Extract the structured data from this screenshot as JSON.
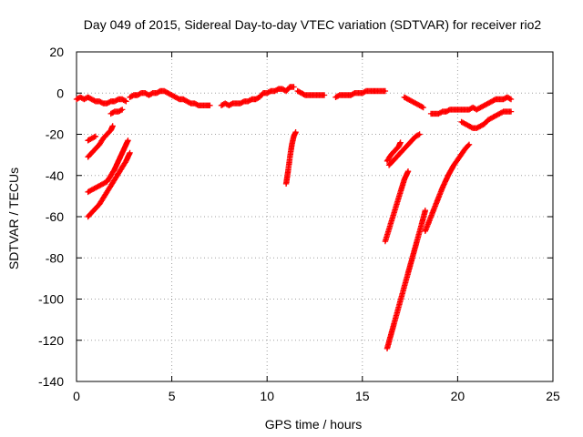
{
  "chart_data": {
    "type": "scatter",
    "title": "Day 049 of 2015, Sidereal Day-to-day VTEC variation (SDTVAR) for receiver rio2",
    "xlabel": "GPS time / hours",
    "ylabel": "SDTVAR / TECUs",
    "xlim": [
      0,
      25
    ],
    "ylim": [
      -140,
      20
    ],
    "xticks": [
      0,
      5,
      10,
      15,
      20,
      25
    ],
    "yticks": [
      -140,
      -120,
      -100,
      -80,
      -60,
      -40,
      -20,
      0,
      20
    ],
    "grid": true,
    "marker": "plus",
    "color": "#ff0000",
    "series": [
      {
        "points": [
          [
            0.0,
            -3
          ],
          [
            0.2,
            -2
          ],
          [
            0.4,
            -3
          ],
          [
            0.6,
            -2
          ],
          [
            0.8,
            -3
          ],
          [
            1.0,
            -4
          ],
          [
            1.2,
            -4
          ],
          [
            1.4,
            -5
          ],
          [
            1.6,
            -5
          ],
          [
            1.8,
            -4
          ],
          [
            2.0,
            -4
          ],
          [
            2.2,
            -3
          ],
          [
            2.4,
            -3
          ],
          [
            2.6,
            -4
          ]
        ]
      },
      {
        "points": [
          [
            2.8,
            -2
          ],
          [
            3.0,
            -1
          ],
          [
            3.2,
            -1
          ],
          [
            3.4,
            0
          ],
          [
            3.6,
            0
          ],
          [
            3.8,
            -1
          ],
          [
            4.0,
            0
          ],
          [
            4.2,
            0
          ],
          [
            4.4,
            1
          ],
          [
            4.6,
            1
          ],
          [
            4.8,
            0
          ],
          [
            5.0,
            -1
          ],
          [
            5.2,
            -2
          ],
          [
            5.4,
            -3
          ],
          [
            5.6,
            -3
          ],
          [
            5.8,
            -4
          ],
          [
            6.0,
            -5
          ],
          [
            6.2,
            -5
          ],
          [
            6.4,
            -6
          ],
          [
            6.6,
            -6
          ],
          [
            6.8,
            -6
          ],
          [
            7.0,
            -6
          ]
        ]
      },
      {
        "points": [
          [
            7.6,
            -6
          ],
          [
            7.8,
            -5
          ],
          [
            8.0,
            -6
          ],
          [
            8.2,
            -5
          ],
          [
            8.4,
            -5
          ],
          [
            8.6,
            -5
          ],
          [
            8.8,
            -4
          ],
          [
            9.0,
            -4
          ],
          [
            9.2,
            -3
          ],
          [
            9.4,
            -3
          ],
          [
            9.6,
            -2
          ],
          [
            9.8,
            0
          ],
          [
            10.0,
            0
          ],
          [
            10.2,
            1
          ],
          [
            10.4,
            1
          ],
          [
            10.6,
            2
          ],
          [
            10.8,
            2
          ],
          [
            11.0,
            1
          ],
          [
            11.2,
            3
          ],
          [
            11.4,
            3
          ]
        ]
      },
      {
        "points": [
          [
            11.6,
            1
          ],
          [
            11.8,
            0
          ],
          [
            12.0,
            -1
          ],
          [
            12.2,
            -1
          ],
          [
            12.4,
            -1
          ],
          [
            12.6,
            -1
          ],
          [
            12.8,
            -1
          ],
          [
            13.0,
            -1
          ]
        ]
      },
      {
        "points": [
          [
            13.6,
            -2
          ],
          [
            13.8,
            -1
          ],
          [
            14.0,
            -1
          ],
          [
            14.2,
            -1
          ],
          [
            14.4,
            -1
          ],
          [
            14.6,
            0
          ],
          [
            14.8,
            0
          ],
          [
            15.0,
            0
          ],
          [
            15.2,
            1
          ],
          [
            15.4,
            1
          ],
          [
            15.6,
            1
          ],
          [
            15.8,
            1
          ],
          [
            16.0,
            1
          ],
          [
            16.2,
            1
          ]
        ]
      },
      {
        "points": [
          [
            17.2,
            -2
          ],
          [
            17.4,
            -3
          ],
          [
            17.6,
            -4
          ],
          [
            17.8,
            -5
          ],
          [
            18.0,
            -6
          ],
          [
            18.2,
            -7
          ]
        ]
      },
      {
        "points": [
          [
            18.6,
            -10
          ],
          [
            18.8,
            -10
          ],
          [
            19.0,
            -10
          ],
          [
            19.2,
            -9
          ],
          [
            19.4,
            -9
          ],
          [
            19.6,
            -8
          ],
          [
            19.8,
            -8
          ],
          [
            20.0,
            -8
          ],
          [
            20.2,
            -8
          ],
          [
            20.4,
            -8
          ],
          [
            20.6,
            -8
          ],
          [
            20.8,
            -7
          ],
          [
            21.0,
            -8
          ],
          [
            21.2,
            -7
          ],
          [
            21.4,
            -6
          ],
          [
            21.6,
            -5
          ],
          [
            21.8,
            -4
          ],
          [
            22.0,
            -3
          ],
          [
            22.2,
            -3
          ],
          [
            22.4,
            -3
          ],
          [
            22.6,
            -2
          ],
          [
            22.8,
            -3
          ]
        ]
      },
      {
        "points": [
          [
            20.2,
            -14
          ],
          [
            20.4,
            -15
          ],
          [
            20.6,
            -16
          ],
          [
            20.8,
            -17
          ],
          [
            21.0,
            -17
          ],
          [
            21.2,
            -16
          ],
          [
            21.4,
            -15
          ],
          [
            21.6,
            -13
          ],
          [
            21.8,
            -12
          ],
          [
            22.0,
            -11
          ],
          [
            22.2,
            -10
          ],
          [
            22.4,
            -9
          ],
          [
            22.6,
            -9
          ],
          [
            22.8,
            -9
          ]
        ]
      },
      {
        "points": [
          [
            0.6,
            -23
          ],
          [
            0.8,
            -22
          ],
          [
            1.0,
            -21
          ]
        ]
      },
      {
        "points": [
          [
            0.6,
            -31
          ],
          [
            0.8,
            -29
          ],
          [
            1.0,
            -27
          ],
          [
            1.2,
            -25
          ],
          [
            1.4,
            -22
          ],
          [
            1.6,
            -20
          ],
          [
            1.8,
            -18
          ],
          [
            1.9,
            -16
          ]
        ]
      },
      {
        "points": [
          [
            0.6,
            -48
          ],
          [
            0.8,
            -47
          ],
          [
            1.0,
            -46
          ],
          [
            1.2,
            -45
          ],
          [
            1.4,
            -44
          ],
          [
            1.6,
            -43
          ],
          [
            1.8,
            -40
          ],
          [
            2.0,
            -37
          ],
          [
            2.2,
            -33
          ],
          [
            2.4,
            -29
          ],
          [
            2.6,
            -25
          ],
          [
            2.7,
            -23
          ]
        ]
      },
      {
        "points": [
          [
            0.6,
            -60
          ],
          [
            0.8,
            -58
          ],
          [
            1.0,
            -56
          ],
          [
            1.2,
            -54
          ],
          [
            1.4,
            -51
          ],
          [
            1.6,
            -48
          ],
          [
            1.8,
            -45
          ],
          [
            2.0,
            -42
          ],
          [
            2.2,
            -39
          ],
          [
            2.4,
            -36
          ],
          [
            2.6,
            -33
          ],
          [
            2.8,
            -29
          ]
        ]
      },
      {
        "points": [
          [
            1.8,
            -10
          ],
          [
            2.0,
            -9
          ],
          [
            2.2,
            -9
          ],
          [
            2.4,
            -8
          ]
        ]
      },
      {
        "points": [
          [
            11.0,
            -44
          ],
          [
            11.1,
            -38
          ],
          [
            11.2,
            -31
          ],
          [
            11.3,
            -25
          ],
          [
            11.4,
            -21
          ],
          [
            11.5,
            -19
          ]
        ]
      },
      {
        "points": [
          [
            16.4,
            -35
          ],
          [
            16.6,
            -33
          ],
          [
            16.8,
            -31
          ],
          [
            17.0,
            -29
          ],
          [
            17.2,
            -27
          ],
          [
            17.4,
            -25
          ],
          [
            17.6,
            -23
          ],
          [
            17.8,
            -21
          ],
          [
            18.0,
            -20
          ]
        ]
      },
      {
        "points": [
          [
            16.3,
            -33
          ],
          [
            16.5,
            -30
          ],
          [
            16.7,
            -28
          ],
          [
            16.9,
            -26
          ],
          [
            17.0,
            -24
          ]
        ]
      },
      {
        "points": [
          [
            16.2,
            -72
          ],
          [
            16.4,
            -66
          ],
          [
            16.6,
            -60
          ],
          [
            16.8,
            -54
          ],
          [
            17.0,
            -48
          ],
          [
            17.2,
            -42
          ],
          [
            17.4,
            -38
          ]
        ]
      },
      {
        "points": [
          [
            16.3,
            -124
          ],
          [
            16.6,
            -114
          ],
          [
            16.9,
            -104
          ],
          [
            17.2,
            -94
          ],
          [
            17.5,
            -84
          ],
          [
            17.8,
            -74
          ],
          [
            18.1,
            -64
          ],
          [
            18.3,
            -57
          ]
        ]
      },
      {
        "points": [
          [
            18.3,
            -67
          ],
          [
            18.6,
            -60
          ],
          [
            18.9,
            -53
          ],
          [
            19.2,
            -46
          ],
          [
            19.5,
            -40
          ],
          [
            19.8,
            -35
          ],
          [
            20.1,
            -31
          ],
          [
            20.4,
            -27
          ],
          [
            20.6,
            -25
          ]
        ]
      }
    ]
  }
}
